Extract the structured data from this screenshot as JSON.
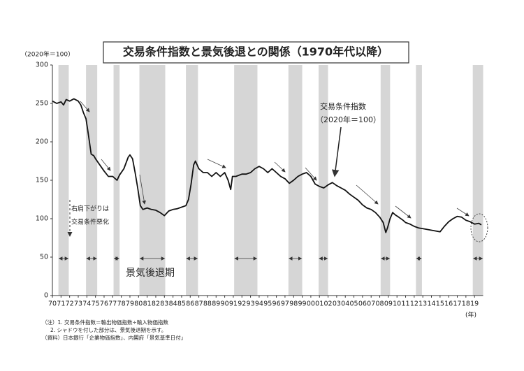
{
  "chart_data": {
    "type": "line",
    "title": "交易条件指数と景気後退との関係（1970年代以降）",
    "unit_label": "（2020年＝100）",
    "series_label": "交易条件指数",
    "series_label_unit": "（2020年＝100）",
    "note_label": [
      "右肩下がりは",
      "交易条件悪化"
    ],
    "shade_label": "景気後退期",
    "x_unit": "(年)",
    "footnotes": [
      "（注）1. 交易条件指数＝輸出物価指数÷輸入物価指数",
      "2. シャドウを付した部分は、景気後退期を示す。",
      "（資料）日本銀行「企業物価指数」、内閣府「景気基準日付」"
    ],
    "color": "#111111",
    "shade_color": "#d6d6d6",
    "x": [
      1970.0,
      1970.5,
      1971.0,
      1971.3,
      1971.6,
      1972.0,
      1972.5,
      1973.0,
      1973.3,
      1973.6,
      1973.9,
      1974.1,
      1974.3,
      1974.5,
      1974.8,
      1975.0,
      1975.5,
      1976.0,
      1976.5,
      1977.0,
      1977.5,
      1977.8,
      1978.3,
      1978.8,
      1979.0,
      1979.3,
      1979.6,
      1979.9,
      1980.2,
      1980.5,
      1981.0,
      1981.5,
      1982.0,
      1982.5,
      1983.0,
      1983.5,
      1984.0,
      1984.5,
      1985.0,
      1985.5,
      1985.8,
      1986.1,
      1986.4,
      1986.6,
      1987.0,
      1987.5,
      1988.0,
      1988.5,
      1989.0,
      1989.5,
      1990.0,
      1990.4,
      1990.7,
      1990.9,
      1991.3,
      1992.0,
      1992.5,
      1993.0,
      1993.5,
      1994.0,
      1994.5,
      1995.0,
      1995.5,
      1996.0,
      1996.5,
      1997.0,
      1997.5,
      1998.0,
      1998.5,
      1999.0,
      1999.5,
      2000.0,
      2000.5,
      2001.0,
      2001.5,
      2002.0,
      2002.5,
      2003.0,
      2003.5,
      2004.0,
      2004.5,
      2005.0,
      2005.5,
      2006.0,
      2006.5,
      2007.0,
      2007.5,
      2008.0,
      2008.4,
      2008.7,
      2008.9,
      2009.2,
      2009.5,
      2009.8,
      2010.2,
      2010.7,
      2011.0,
      2011.5,
      2012.0,
      2012.5,
      2013.0,
      2013.5,
      2014.0,
      2014.5,
      2015.0,
      2015.5,
      2016.0,
      2016.5,
      2017.0,
      2017.5,
      2018.0,
      2018.5,
      2019.0,
      2019.5,
      2019.8
    ],
    "values": [
      253,
      250,
      252,
      248,
      255,
      253,
      256,
      253,
      248,
      238,
      230,
      215,
      200,
      184,
      182,
      178,
      170,
      162,
      155,
      155,
      150,
      157,
      165,
      180,
      183,
      178,
      160,
      140,
      117,
      112,
      114,
      112,
      111,
      108,
      104,
      110,
      112,
      113,
      115,
      117,
      125,
      145,
      170,
      175,
      165,
      160,
      160,
      155,
      160,
      155,
      160,
      150,
      138,
      155,
      155,
      158,
      158,
      160,
      165,
      168,
      165,
      160,
      165,
      160,
      155,
      152,
      146,
      150,
      155,
      158,
      160,
      155,
      145,
      142,
      140,
      144,
      147,
      143,
      140,
      137,
      132,
      128,
      124,
      118,
      114,
      112,
      108,
      102,
      95,
      82,
      88,
      100,
      108,
      105,
      102,
      98,
      95,
      93,
      90,
      88,
      87,
      86,
      85,
      84,
      83,
      90,
      96,
      100,
      103,
      102,
      98,
      96,
      93,
      94,
      92
    ],
    "shaded_periods": [
      [
        1970.7,
        1971.9
      ],
      [
        1973.9,
        1975.2
      ],
      [
        1977.1,
        1977.8
      ],
      [
        1980.1,
        1983.1
      ],
      [
        1985.5,
        1986.9
      ],
      [
        1991.1,
        1993.8
      ],
      [
        1997.4,
        1999.0
      ],
      [
        2000.9,
        2002.0
      ],
      [
        2008.1,
        2009.2
      ],
      [
        2012.2,
        2012.9
      ],
      [
        2018.8,
        2020.0
      ]
    ],
    "xlim": [
      1970,
      2020
    ],
    "ylim": [
      0,
      300
    ],
    "yticks": [
      0,
      50,
      100,
      150,
      200,
      250,
      300
    ],
    "xticks": [
      {
        "value": 1970,
        "label": "70"
      },
      {
        "value": 1971,
        "label": "71"
      },
      {
        "value": 1972,
        "label": "72"
      },
      {
        "value": 1973,
        "label": "73"
      },
      {
        "value": 1974,
        "label": "74"
      },
      {
        "value": 1975,
        "label": "75"
      },
      {
        "value": 1976,
        "label": "76"
      },
      {
        "value": 1977,
        "label": "77"
      },
      {
        "value": 1978,
        "label": "78"
      },
      {
        "value": 1979,
        "label": "79"
      },
      {
        "value": 1980,
        "label": "80"
      },
      {
        "value": 1981,
        "label": "81"
      },
      {
        "value": 1982,
        "label": "82"
      },
      {
        "value": 1983,
        "label": "83"
      },
      {
        "value": 1984,
        "label": "84"
      },
      {
        "value": 1985,
        "label": "85"
      },
      {
        "value": 1986,
        "label": "86"
      },
      {
        "value": 1987,
        "label": "87"
      },
      {
        "value": 1988,
        "label": "88"
      },
      {
        "value": 1989,
        "label": "89"
      },
      {
        "value": 1990,
        "label": "90"
      },
      {
        "value": 1991,
        "label": "91"
      },
      {
        "value": 1992,
        "label": "92"
      },
      {
        "value": 1993,
        "label": "93"
      },
      {
        "value": 1994,
        "label": "94"
      },
      {
        "value": 1995,
        "label": "95"
      },
      {
        "value": 1996,
        "label": "96"
      },
      {
        "value": 1997,
        "label": "97"
      },
      {
        "value": 1998,
        "label": "98"
      },
      {
        "value": 1999,
        "label": "99"
      },
      {
        "value": 2000,
        "label": "00"
      },
      {
        "value": 2001,
        "label": "01"
      },
      {
        "value": 2002,
        "label": "02"
      },
      {
        "value": 2003,
        "label": "03"
      },
      {
        "value": 2004,
        "label": "04"
      },
      {
        "value": 2005,
        "label": "05"
      },
      {
        "value": 2006,
        "label": "06"
      },
      {
        "value": 2007,
        "label": "07"
      },
      {
        "value": 2008,
        "label": "08"
      },
      {
        "value": 2009,
        "label": "09"
      },
      {
        "value": 2010,
        "label": "10"
      },
      {
        "value": 2011,
        "label": "11"
      },
      {
        "value": 2012,
        "label": "12"
      },
      {
        "value": 2013,
        "label": "13"
      },
      {
        "value": 2014,
        "label": "14"
      },
      {
        "value": 2015,
        "label": "15"
      },
      {
        "value": 2016,
        "label": "16"
      },
      {
        "value": 2017,
        "label": "17"
      },
      {
        "value": 2018,
        "label": "18"
      },
      {
        "value": 2019,
        "label": "19"
      }
    ]
  }
}
